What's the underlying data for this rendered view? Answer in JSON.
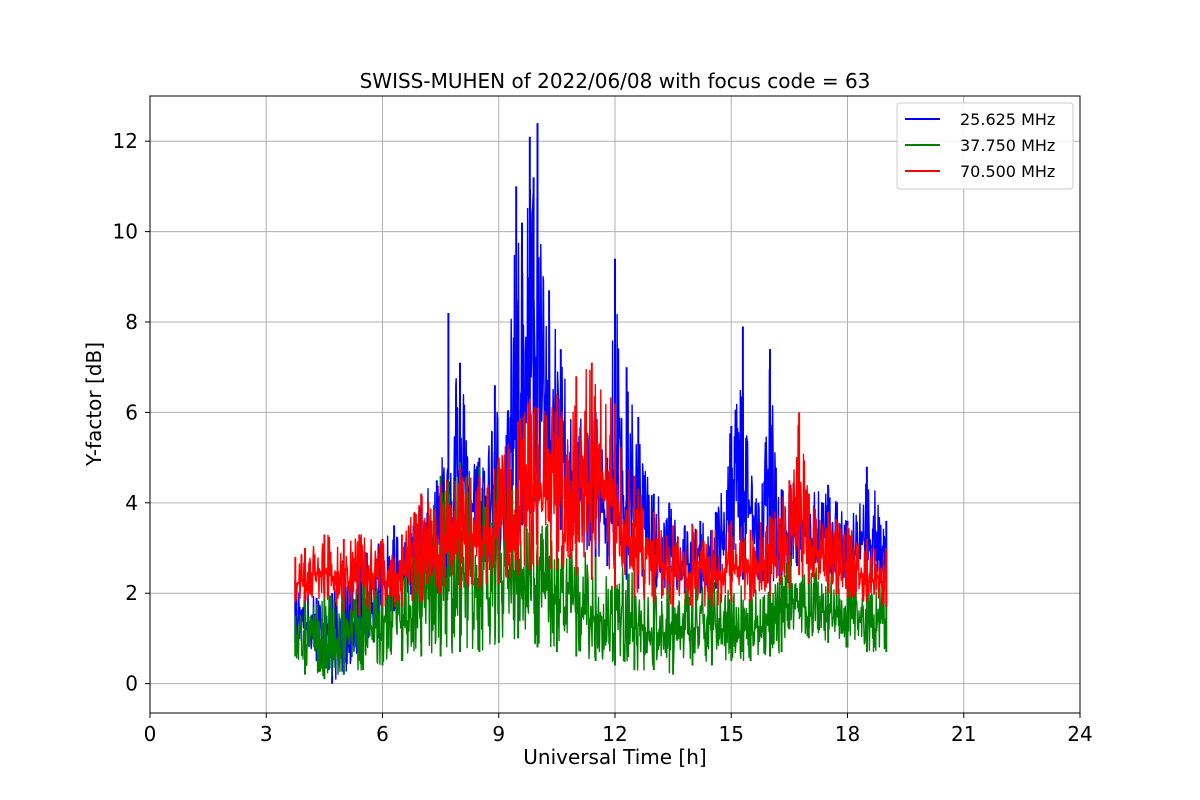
{
  "chart_data": {
    "type": "line",
    "title": "SWISS-MUHEN of 2022/06/08 with focus code = 63",
    "xlabel": "Universal Time [h]",
    "ylabel": "Y-factor [dB]",
    "xlim": [
      0,
      24
    ],
    "ylim": [
      -0.65,
      13
    ],
    "xticks": [
      0,
      3,
      6,
      9,
      12,
      15,
      18,
      21,
      24
    ],
    "yticks": [
      0,
      2,
      4,
      6,
      8,
      10,
      12
    ],
    "grid": true,
    "legend_position": "top-right",
    "series": [
      {
        "name": "25.625 MHz",
        "color": "#0000ff",
        "x": [
          3.75,
          4.0,
          4.3,
          4.7,
          5.0,
          5.4,
          5.9,
          6.3,
          6.8,
          7.0,
          7.4,
          7.7,
          8.0,
          8.5,
          8.9,
          9.2,
          9.45,
          9.6,
          9.8,
          9.9,
          10.0,
          10.3,
          10.6,
          11.0,
          11.5,
          11.8,
          12.0,
          12.3,
          12.6,
          13.0,
          13.4,
          13.8,
          14.2,
          14.6,
          15.0,
          15.3,
          15.7,
          16.0,
          16.3,
          16.7,
          17.0,
          17.5,
          18.0,
          18.5,
          19.0
        ],
        "max": [
          2.3,
          2.2,
          1.9,
          2.0,
          2.5,
          2.8,
          3.1,
          3.5,
          3.5,
          4.2,
          4.5,
          8.2,
          7.1,
          5.0,
          6.6,
          5.5,
          11.0,
          10.2,
          12.1,
          11.2,
          12.4,
          8.7,
          7.4,
          6.0,
          6.0,
          5.0,
          9.4,
          7.0,
          5.9,
          4.2,
          4.0,
          3.5,
          3.6,
          3.8,
          5.7,
          7.9,
          4.0,
          7.4,
          4.3,
          4.6,
          4.2,
          4.4,
          3.6,
          4.8,
          3.6
        ],
        "min": [
          0.9,
          0.8,
          0.5,
          0.0,
          0.2,
          0.6,
          1.0,
          1.6,
          1.9,
          2.1,
          2.0,
          2.2,
          2.3,
          2.5,
          2.7,
          2.9,
          3.3,
          3.5,
          3.8,
          3.8,
          3.9,
          3.6,
          3.4,
          3.1,
          2.8,
          2.6,
          2.5,
          2.3,
          2.1,
          2.1,
          2.0,
          2.0,
          2.0,
          2.1,
          2.2,
          2.3,
          2.3,
          2.2,
          2.4,
          2.6,
          2.5,
          2.4,
          2.3,
          2.2,
          2.2
        ]
      },
      {
        "name": "37.750 MHz",
        "color": "#008000",
        "x": [
          3.75,
          4.0,
          4.5,
          5.0,
          5.5,
          6.0,
          6.5,
          7.0,
          7.5,
          8.0,
          8.5,
          9.0,
          9.5,
          10.0,
          10.5,
          11.0,
          11.5,
          12.0,
          12.5,
          13.0,
          13.5,
          14.0,
          14.5,
          15.0,
          15.5,
          16.0,
          16.3,
          16.5,
          17.0,
          17.5,
          18.0,
          18.5,
          19.0
        ],
        "max": [
          1.5,
          1.8,
          1.9,
          2.2,
          2.4,
          2.5,
          2.6,
          3.1,
          4.6,
          4.9,
          4.8,
          4.9,
          4.5,
          3.8,
          3.4,
          3.0,
          2.8,
          2.7,
          2.5,
          2.4,
          2.3,
          2.4,
          2.3,
          2.2,
          2.3,
          2.2,
          2.4,
          2.9,
          2.6,
          2.5,
          2.4,
          2.3,
          2.2
        ],
        "min": [
          0.6,
          0.2,
          0.1,
          0.2,
          0.3,
          0.4,
          0.5,
          0.6,
          0.6,
          0.7,
          0.7,
          0.9,
          1.0,
          0.8,
          0.7,
          0.6,
          0.5,
          0.4,
          0.3,
          0.3,
          0.2,
          0.4,
          0.4,
          0.5,
          0.5,
          0.6,
          0.7,
          1.2,
          1.0,
          0.9,
          0.8,
          0.7,
          0.7
        ]
      },
      {
        "name": "70.500 MHz",
        "color": "#ff0000",
        "x": [
          3.75,
          4.0,
          4.5,
          5.0,
          5.4,
          6.0,
          6.5,
          7.0,
          7.5,
          8.0,
          8.5,
          9.0,
          9.5,
          9.8,
          10.0,
          10.5,
          11.0,
          11.4,
          12.0,
          12.5,
          13.0,
          13.5,
          14.0,
          14.5,
          15.0,
          15.5,
          16.0,
          16.5,
          16.75,
          17.0,
          17.5,
          18.0,
          18.5,
          19.0
        ],
        "max": [
          2.8,
          3.0,
          3.3,
          3.2,
          3.3,
          3.2,
          3.3,
          4.2,
          4.4,
          4.8,
          4.6,
          5.0,
          5.8,
          6.3,
          6.1,
          6.4,
          6.8,
          7.1,
          6.2,
          4.6,
          3.8,
          3.5,
          3.5,
          3.4,
          3.6,
          3.4,
          3.7,
          4.5,
          6.0,
          4.2,
          3.8,
          3.5,
          3.2,
          3.0
        ],
        "min": [
          1.8,
          1.8,
          1.9,
          1.6,
          1.5,
          1.7,
          1.7,
          1.8,
          2.0,
          2.1,
          2.1,
          2.2,
          2.4,
          2.5,
          2.6,
          2.5,
          2.4,
          2.3,
          2.1,
          1.9,
          1.8,
          1.7,
          1.7,
          1.7,
          1.8,
          1.8,
          1.9,
          2.1,
          2.4,
          2.2,
          2.0,
          1.9,
          1.8,
          1.7
        ]
      }
    ]
  }
}
